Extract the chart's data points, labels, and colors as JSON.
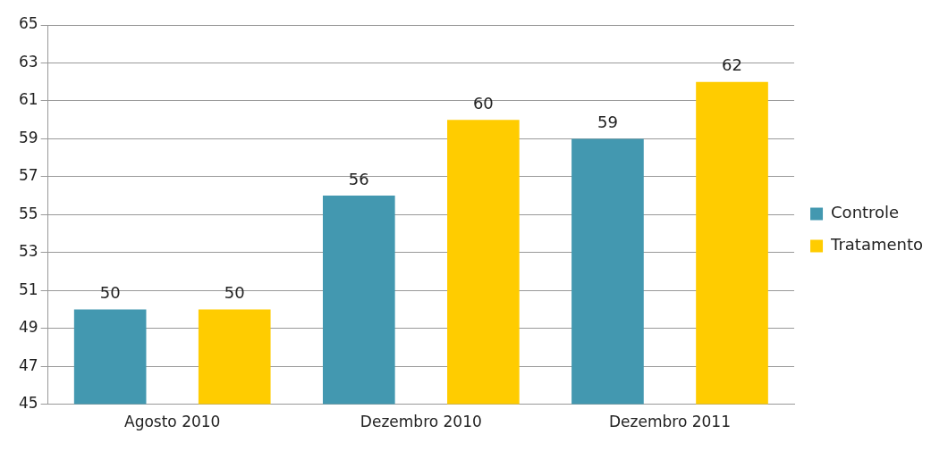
{
  "chart_data": {
    "type": "bar",
    "categories": [
      "Agosto 2010",
      "Dezembro 2010",
      "Dezembro 2011"
    ],
    "series": [
      {
        "name": "Controle",
        "color": "#4398b0",
        "values": [
          50,
          56,
          59
        ]
      },
      {
        "name": "Tratamento",
        "color": "#ffcc00",
        "values": [
          50,
          60,
          62
        ]
      }
    ],
    "ylim": [
      45,
      65
    ],
    "yticks": [
      45,
      47,
      49,
      51,
      53,
      55,
      57,
      59,
      61,
      63,
      65
    ],
    "grid": "y",
    "legend": "right",
    "data_labels": true
  }
}
